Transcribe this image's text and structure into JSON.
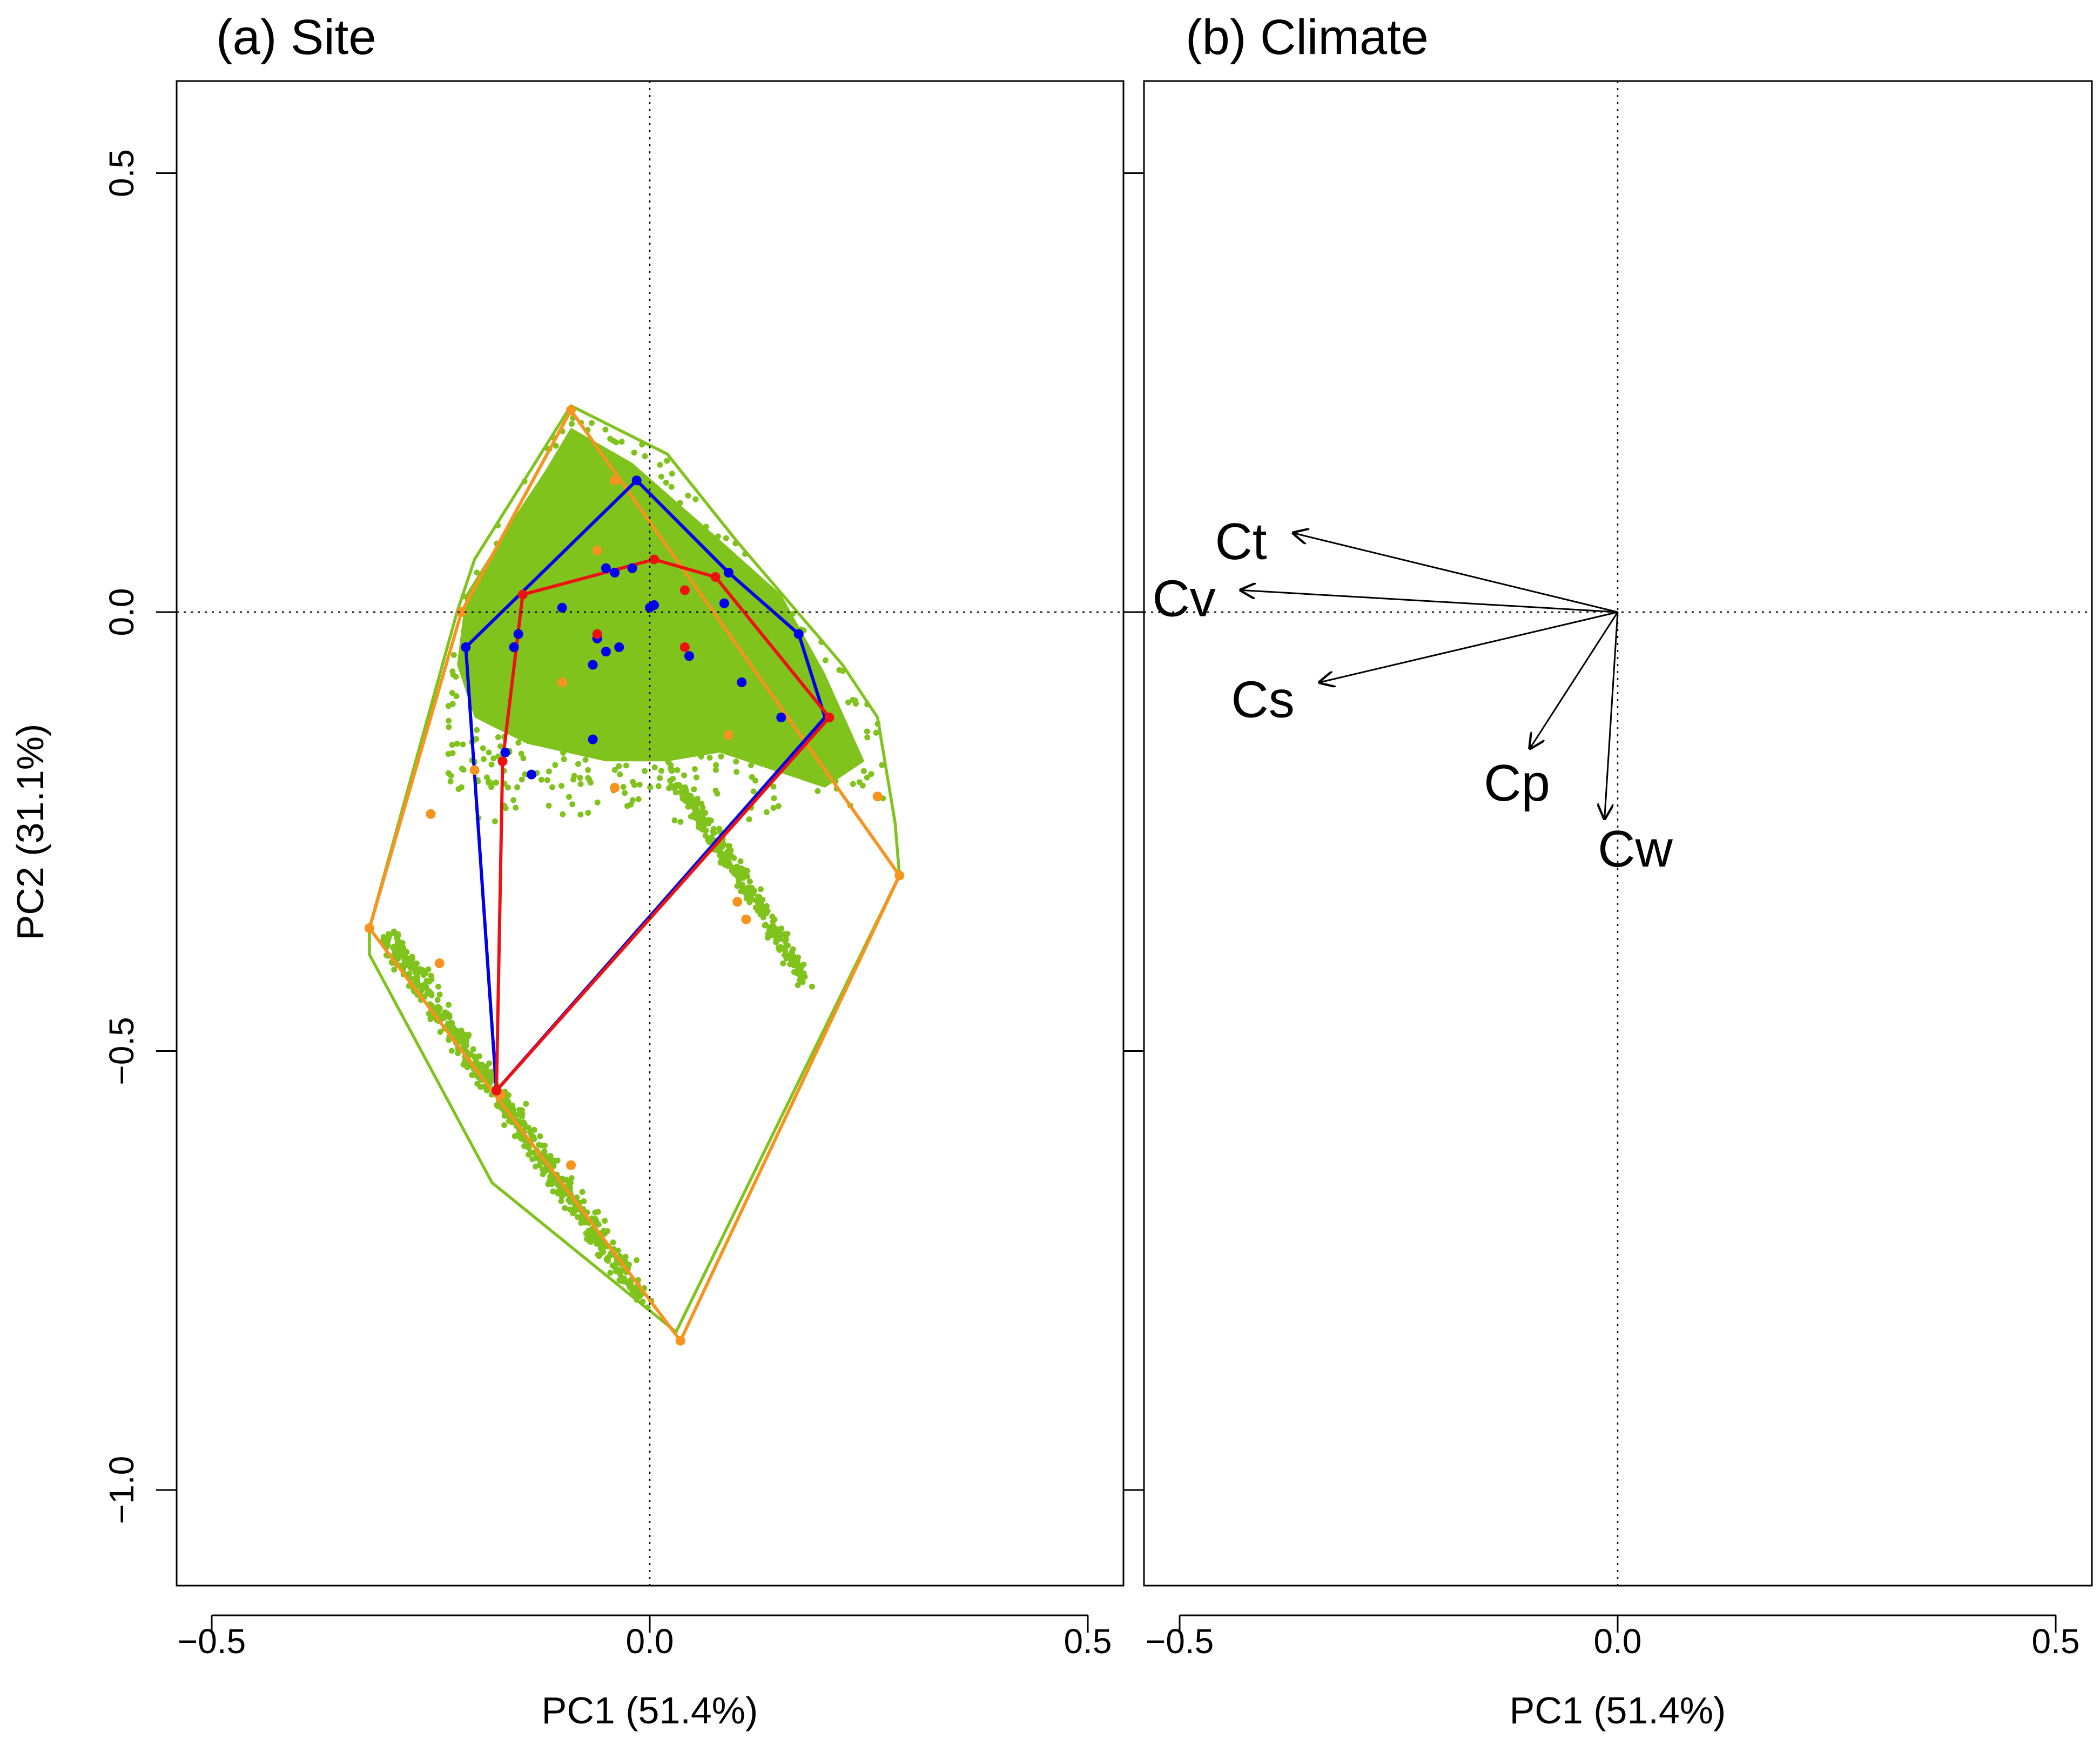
{
  "chart_data": [
    {
      "type": "scatter",
      "title": "(a) Site",
      "xlabel": "PC1 (51.4%)",
      "ylabel": "PC2 (31.1%)",
      "xlim": [
        -0.54,
        0.54
      ],
      "ylim": [
        -1.12,
        0.6
      ],
      "xticks": [
        -0.5,
        0.0,
        0.5
      ],
      "xtick_labels": [
        "-0.5",
        "0.0",
        "0.5"
      ],
      "yticks": [
        -1.0,
        -0.5,
        0.0,
        0.5
      ],
      "ytick_labels": [
        "-1.0",
        "-0.5",
        "0.0",
        "0.5"
      ],
      "reference_lines": {
        "x": 0,
        "y": 0
      },
      "colors": {
        "green": "#7fc31c",
        "orange": "#f7931e",
        "blue": "#0000ee",
        "red": "#ee1111"
      },
      "series": [
        {
          "name": "green-hull",
          "color": "#7fc31c",
          "hull": [
            [
              -0.09,
              0.235
            ],
            [
              0.02,
              0.18
            ],
            [
              0.1,
              0.08
            ],
            [
              0.22,
              -0.06
            ],
            [
              0.26,
              -0.12
            ],
            [
              0.28,
              -0.24
            ],
            [
              0.285,
              -0.3
            ],
            [
              0.03,
              -0.82
            ],
            [
              -0.18,
              -0.65
            ],
            [
              -0.32,
              -0.39
            ],
            [
              -0.32,
              -0.36
            ],
            [
              -0.22,
              0.0
            ],
            [
              -0.2,
              0.06
            ]
          ]
        },
        {
          "name": "orange-hull",
          "color": "#f7931e",
          "hull": [
            [
              -0.09,
              0.23
            ],
            [
              0.285,
              -0.3
            ],
            [
              0.035,
              -0.83
            ],
            [
              -0.32,
              -0.36
            ],
            [
              -0.215,
              0.0
            ]
          ],
          "points": [
            [
              -0.09,
              0.23
            ],
            [
              -0.04,
              0.15
            ],
            [
              -0.06,
              0.07
            ],
            [
              -0.215,
              0.0
            ],
            [
              -0.2,
              -0.18
            ],
            [
              -0.1,
              -0.08
            ],
            [
              -0.06,
              -0.03
            ],
            [
              0.04,
              -0.04
            ],
            [
              0.09,
              -0.14
            ],
            [
              -0.04,
              -0.2
            ],
            [
              -0.25,
              -0.23
            ],
            [
              0.26,
              -0.21
            ],
            [
              0.285,
              -0.3
            ],
            [
              0.1,
              -0.33
            ],
            [
              0.11,
              -0.35
            ],
            [
              -0.32,
              -0.36
            ],
            [
              -0.24,
              -0.4
            ],
            [
              -0.17,
              -0.55
            ],
            [
              -0.09,
              -0.63
            ],
            [
              0.035,
              -0.83
            ]
          ]
        },
        {
          "name": "blue-hull",
          "color": "#0000ee",
          "hull": [
            [
              -0.015,
              0.15
            ],
            [
              0.09,
              0.045
            ],
            [
              0.17,
              -0.025
            ],
            [
              0.2,
              -0.12
            ],
            [
              -0.175,
              -0.545
            ],
            [
              -0.21,
              -0.04
            ]
          ],
          "points": [
            [
              -0.015,
              0.15
            ],
            [
              -0.05,
              0.05
            ],
            [
              -0.04,
              0.045
            ],
            [
              -0.02,
              0.05
            ],
            [
              -0.1,
              0.005
            ],
            [
              0.0,
              0.005
            ],
            [
              0.005,
              0.008
            ],
            [
              -0.06,
              -0.03
            ],
            [
              -0.05,
              -0.045
            ],
            [
              -0.035,
              -0.04
            ],
            [
              -0.065,
              -0.06
            ],
            [
              0.045,
              -0.05
            ],
            [
              -0.15,
              -0.025
            ],
            [
              -0.155,
              -0.04
            ],
            [
              -0.165,
              -0.16
            ],
            [
              -0.135,
              -0.185
            ],
            [
              -0.065,
              -0.145
            ],
            [
              0.085,
              0.01
            ],
            [
              0.09,
              0.045
            ],
            [
              0.105,
              -0.08
            ],
            [
              0.15,
              -0.12
            ],
            [
              0.17,
              -0.025
            ],
            [
              -0.21,
              -0.04
            ],
            [
              -0.175,
              -0.545
            ]
          ]
        },
        {
          "name": "red-hull",
          "color": "#ee1111",
          "hull": [
            [
              0.005,
              0.06
            ],
            [
              0.075,
              0.04
            ],
            [
              0.205,
              -0.12
            ],
            [
              -0.175,
              -0.545
            ],
            [
              -0.168,
              -0.17
            ],
            [
              -0.145,
              0.02
            ]
          ],
          "points": [
            [
              0.005,
              0.06
            ],
            [
              0.04,
              0.025
            ],
            [
              0.075,
              0.04
            ],
            [
              0.04,
              -0.04
            ],
            [
              -0.06,
              -0.025
            ],
            [
              -0.145,
              0.02
            ],
            [
              -0.168,
              -0.17
            ],
            [
              0.205,
              -0.12
            ],
            [
              -0.175,
              -0.545
            ]
          ]
        }
      ]
    },
    {
      "type": "biplot-arrows",
      "title": "(b) Climate",
      "xlabel": "PC1 (51.4%)",
      "xlim": [
        -0.54,
        0.54
      ],
      "ylim": [
        -1.12,
        0.6
      ],
      "xticks": [
        -0.5,
        0.0,
        0.5
      ],
      "xtick_labels": [
        "-0.5",
        "0.0",
        "0.5"
      ],
      "yticks": [
        -1.0,
        -0.5,
        0.0,
        0.5
      ],
      "reference_lines": {
        "x": 0,
        "y": 0
      },
      "arrows": [
        {
          "name": "Ct",
          "x": -0.37,
          "y": 0.09,
          "label_x": -0.43,
          "label_y": 0.08
        },
        {
          "name": "Cv",
          "x": -0.43,
          "y": 0.025,
          "label_x": -0.495,
          "label_y": 0.015
        },
        {
          "name": "Cs",
          "x": -0.34,
          "y": -0.08,
          "label_x": -0.405,
          "label_y": -0.1
        },
        {
          "name": "Cp",
          "x": -0.1,
          "y": -0.155,
          "label_x": -0.115,
          "label_y": -0.195
        },
        {
          "name": "Cw",
          "x": -0.015,
          "y": -0.235,
          "label_x": 0.02,
          "label_y": -0.27
        }
      ]
    }
  ]
}
